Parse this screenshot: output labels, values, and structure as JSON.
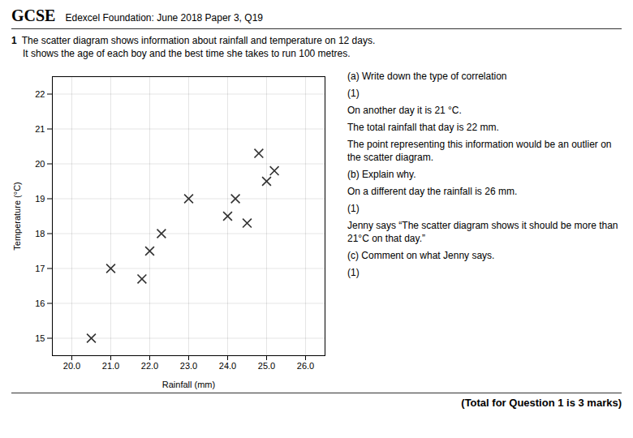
{
  "chart_data": {
    "type": "scatter",
    "title": "GCSE",
    "subtitle": "Edexcel Foundation: June 2018 Paper 3, Q19",
    "xlabel": "Rainfall (mm)",
    "ylabel": "Temperature (°C)",
    "x": [
      20.5,
      21.0,
      21.8,
      22.0,
      22.3,
      23.0,
      24.0,
      24.2,
      24.5,
      24.8,
      25.0,
      25.2
    ],
    "values": [
      15.0,
      17.0,
      16.7,
      17.5,
      18.0,
      19.0,
      18.5,
      19.0,
      18.3,
      20.3,
      19.5,
      19.8
    ],
    "color": "#333333",
    "marker": "x",
    "xlim": [
      19.5,
      26.5
    ],
    "ylim": [
      14.5,
      22.5
    ],
    "xticks": [
      20,
      21,
      22,
      23,
      24,
      25,
      26
    ],
    "yticks": [
      15,
      16,
      17,
      18,
      19,
      20,
      21,
      22
    ],
    "grid": true,
    "annotations": [
      "1",
      "The scatter diagram shows information about rainfall and temperature on 12 days.",
      "It shows the age of each boy and the best time she takes to run 100 metres.",
      "(a)  Write down the type of correlation",
      "(1)",
      "On another day it is 21 °C.",
      "The total rainfall that day is 22 mm.",
      "The point representing this information would be an outlier on the scatter diagram.",
      "(b)  Explain why.",
      "On a different day the rainfall is 26 mm.",
      "(1)",
      "Jenny says  “The scatter diagram shows it should be more than 21°C on that day.”",
      "(c)  Comment on what Jenny says.",
      "(1)",
      "(Total for Question 1 is 3 marks)"
    ]
  }
}
